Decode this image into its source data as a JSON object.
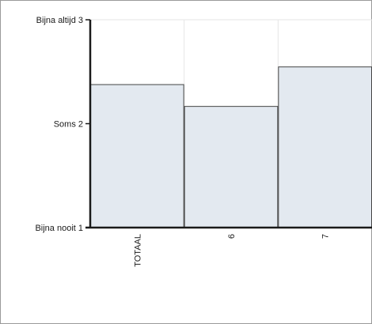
{
  "chart_data": {
    "type": "bar",
    "categories": [
      "TOTAAL",
      "6",
      "7"
    ],
    "values": [
      2.38,
      2.17,
      2.55
    ],
    "ylim": [
      1,
      3
    ],
    "y_ticks": [
      {
        "value": 1,
        "label": "Bijna nooit 1"
      },
      {
        "value": 2,
        "label": "Soms 2"
      },
      {
        "value": 3,
        "label": "Bijna altijd 3"
      }
    ],
    "grid": true,
    "bar_color": "#e3e9f0",
    "bar_edge_color": "#444444",
    "axis_color": "#1a1a1a",
    "grid_color": "#e6e6e6"
  }
}
